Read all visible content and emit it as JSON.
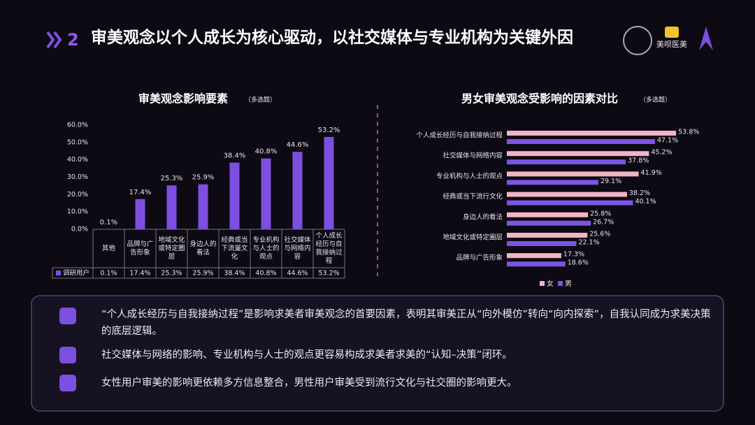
{
  "header": {
    "number": "2",
    "title": "审美观念以个人成长为核心驱动，以社交媒体与专业机构为关键外因"
  },
  "logos": [
    "美呗医美"
  ],
  "chart_data": [
    {
      "type": "bar",
      "title": "审美观念影响要素",
      "subtitle": "（多选题）",
      "categories": [
        "其他",
        "品牌与广告形象",
        "地域文化或特定圈层",
        "身边人的看法",
        "经典或当下流量文化",
        "专业机构与人士的观点",
        "社交媒体与网络内容",
        "个人成长经历与自我接纳过程"
      ],
      "series": [
        {
          "name": "调研用户",
          "color": "#7c4fe0",
          "values": [
            0.1,
            17.4,
            25.3,
            25.9,
            38.4,
            40.8,
            44.6,
            53.2
          ],
          "value_labels": [
            "0.1%",
            "17.4%",
            "25.3%",
            "25.9%",
            "38.4%",
            "40.8%",
            "44.6%",
            "53.2%"
          ]
        }
      ],
      "ylim": [
        0,
        60
      ],
      "yticks": [
        {
          "value": 0,
          "label": "0.0%"
        },
        {
          "value": 10,
          "label": "10.0%"
        },
        {
          "value": 20,
          "label": "20.0%"
        },
        {
          "value": 30,
          "label": "30.0%"
        },
        {
          "value": 40,
          "label": "40.0%"
        },
        {
          "value": 50,
          "label": "50.0%"
        },
        {
          "value": 60,
          "label": "60.0%"
        }
      ]
    },
    {
      "type": "hbar",
      "title": "男女审美观念受影响的因素对比",
      "subtitle": "（多选题）",
      "categories": [
        "个人成长经历与自我接纳过程",
        "社交媒体与网络内容",
        "专业机构与人士的观点",
        "经典或当下流行文化",
        "身边人的看法",
        "地域文化或特定圈层",
        "品牌与广告形象"
      ],
      "series": [
        {
          "name": "女",
          "color": "#f3b3c6",
          "values": [
            53.8,
            45.2,
            41.9,
            38.2,
            25.8,
            25.6,
            17.3
          ],
          "value_labels": [
            "53.8%",
            "45.2%",
            "41.9%",
            "38.2%",
            "25.8%",
            "25.6%",
            "17.3%"
          ]
        },
        {
          "name": "男",
          "color": "#7b55e6",
          "values": [
            47.1,
            37.8,
            29.1,
            40.1,
            26.7,
            22.1,
            18.6
          ],
          "value_labels": [
            "47.1%",
            "37.8%",
            "29.1%",
            "40.1%",
            "26.7%",
            "22.1%",
            "18.6%"
          ]
        }
      ],
      "legend": "bottom"
    }
  ],
  "notes": [
    "“个人成长经历与自我接纳过程”是影响求美者审美观念的首要因素，表明其审美正从“向外模仿”转向“向内探索”，自我认同成为求美决策的底层逻辑。",
    "社交媒体与网络的影响、专业机构与人士的观点更容易构成求美者求美的“认知–决策”闭环。",
    "女性用户审美的影响更依赖多方信息整合，男性用户审美受到流行文化与社交圈的影响更大。"
  ]
}
